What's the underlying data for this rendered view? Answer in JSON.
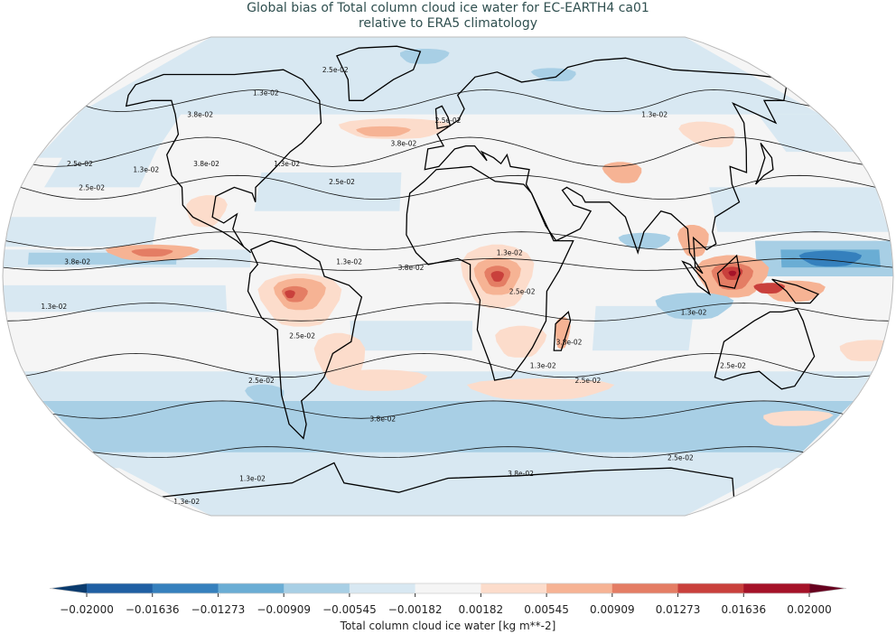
{
  "title": {
    "line1": "Global bias of Total column cloud ice water for EC-EARTH4 ca01",
    "line2": "relative to ERA5 climatology"
  },
  "map": {
    "projection": "robinson",
    "central_longitude": 0,
    "ocean_fill": "#f5f5f5",
    "coastline_color": "#000000",
    "contour_levels": [
      "1.3e-02",
      "2.5e-02",
      "3.8e-02"
    ],
    "contour_labels": [
      "1.3e-02",
      "2.5e-02",
      "3.8e-02",
      "2.5e-02",
      "1.3e-02",
      "3.8e-02",
      "2.5e-02",
      "1.3e-02",
      "2.5e-02",
      "3.8e-02",
      "2.5e-02",
      "1.3e-02",
      "3.8e-02",
      "2.5e-02",
      "3.8e-02",
      "1.3e-02",
      "2.5e-02",
      "3.8e-02",
      "1.3e-02",
      "2.5e-02",
      "1.3e-02",
      "3.8e-02",
      "2.5e-02",
      "1.3e-02",
      "2.5e-02",
      "1.3e-02",
      "3.8e-02",
      "2.5e-02",
      "1.3e-02",
      "1.3e-02"
    ]
  },
  "colorbar": {
    "label": "Total column cloud ice water [kg m**-2]",
    "ticks": [
      "−0.02000",
      "−0.01636",
      "−0.01273",
      "−0.00909",
      "−0.00545",
      "−0.00182",
      "0.00182",
      "0.00545",
      "0.00909",
      "0.01273",
      "0.01636",
      "0.02000"
    ],
    "colors": [
      "#1f5fa3",
      "#3580bd",
      "#6aadd4",
      "#a8cfe5",
      "#d8e8f2",
      "#f5f5f5",
      "#fcdccb",
      "#f6b394",
      "#e47d64",
      "#c9403c",
      "#a51228"
    ],
    "under_color": "#0a3b6e",
    "over_color": "#67001f",
    "extend": "both"
  }
}
